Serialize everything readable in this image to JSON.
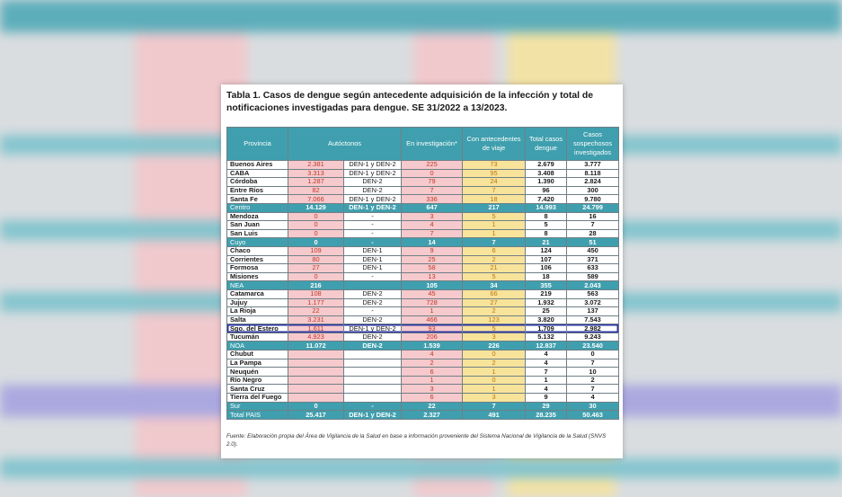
{
  "title": "Tabla 1. Casos de dengue según antecedente adquisición de la infección y total de notificaciones investigadas para dengue. SE 31/2022 a 13/2023.",
  "headers": {
    "provincia": "Provincia",
    "autoctonos": "Autóctonos",
    "investigacion": "En investigación*",
    "viaje": "Con antecedentes de viaje",
    "total": "Total casos dengue",
    "sospechosos": "Casos sospechosos investigados"
  },
  "rows": [
    {
      "type": "prov",
      "provincia": "Buenos Aires",
      "aut": "2.381",
      "den": "DEN-1  y DEN-2",
      "inv": "225",
      "via": "73",
      "tot": "2.679",
      "sos": "3.777"
    },
    {
      "type": "prov",
      "provincia": "CABA",
      "aut": "3.313",
      "den": "DEN-1  y DEN-2",
      "inv": "0",
      "via": "95",
      "tot": "3.408",
      "sos": "8.118"
    },
    {
      "type": "prov",
      "provincia": "Córdoba",
      "aut": "1.287",
      "den": "DEN-2",
      "inv": "79",
      "via": "24",
      "tot": "1.390",
      "sos": "2.824"
    },
    {
      "type": "prov",
      "provincia": "Entre Ríos",
      "aut": "82",
      "den": "DEN-2",
      "inv": "7",
      "via": "7",
      "tot": "96",
      "sos": "300"
    },
    {
      "type": "prov",
      "provincia": "Santa Fe",
      "aut": "7.066",
      "den": "DEN-1  y DEN-2",
      "inv": "336",
      "via": "18",
      "tot": "7.420",
      "sos": "9.780"
    },
    {
      "type": "region",
      "provincia": "Centro",
      "aut": "14.129",
      "den": "DEN-1  y DEN-2",
      "inv": "647",
      "via": "217",
      "tot": "14.993",
      "sos": "24.799"
    },
    {
      "type": "prov",
      "provincia": "Mendoza",
      "aut": "0",
      "den": "-",
      "inv": "3",
      "via": "5",
      "tot": "8",
      "sos": "16"
    },
    {
      "type": "prov",
      "provincia": "San Juan",
      "aut": "0",
      "den": "-",
      "inv": "4",
      "via": "1",
      "tot": "5",
      "sos": "7"
    },
    {
      "type": "prov",
      "provincia": "San Luis",
      "aut": "0",
      "den": "-",
      "inv": "7",
      "via": "1",
      "tot": "8",
      "sos": "28"
    },
    {
      "type": "region",
      "provincia": "Cuyo",
      "aut": "0",
      "den": "-",
      "inv": "14",
      "via": "7",
      "tot": "21",
      "sos": "51"
    },
    {
      "type": "prov",
      "provincia": "Chaco",
      "aut": "109",
      "den": "DEN-1",
      "inv": "9",
      "via": "6",
      "tot": "124",
      "sos": "450"
    },
    {
      "type": "prov",
      "provincia": "Corrientes",
      "aut": "80",
      "den": "DEN-1",
      "inv": "25",
      "via": "2",
      "tot": "107",
      "sos": "371"
    },
    {
      "type": "prov",
      "provincia": "Formosa",
      "aut": "27",
      "den": "DEN-1",
      "inv": "58",
      "via": "21",
      "tot": "106",
      "sos": "633"
    },
    {
      "type": "prov",
      "provincia": "Misiones",
      "aut": "0",
      "den": "-",
      "inv": "13",
      "via": "5",
      "tot": "18",
      "sos": "589"
    },
    {
      "type": "region",
      "provincia": "NEA",
      "aut": "216",
      "den": "",
      "inv": "105",
      "via": "34",
      "tot": "355",
      "sos": "2.043"
    },
    {
      "type": "prov",
      "provincia": "Catamarca",
      "aut": "108",
      "den": "DEN-2",
      "inv": "45",
      "via": "66",
      "tot": "219",
      "sos": "563"
    },
    {
      "type": "prov",
      "provincia": "Jujuy",
      "aut": "1.177",
      "den": "DEN-2",
      "inv": "728",
      "via": "27",
      "tot": "1.932",
      "sos": "3.072"
    },
    {
      "type": "prov",
      "provincia": "La Rioja",
      "aut": "22",
      "den": "-",
      "inv": "1",
      "via": "2",
      "tot": "25",
      "sos": "137"
    },
    {
      "type": "prov",
      "provincia": "Salta",
      "aut": "3.231",
      "den": "DEN-2",
      "inv": "466",
      "via": "123",
      "tot": "3.820",
      "sos": "7.543"
    },
    {
      "type": "hl",
      "provincia": "Sgo. del Estero",
      "aut": "1.611",
      "den": "DEN-1  y DEN-2",
      "inv": "93",
      "via": "5",
      "tot": "1.709",
      "sos": "2.982"
    },
    {
      "type": "prov",
      "provincia": "Tucumán",
      "aut": "4.923",
      "den": "DEN-2",
      "inv": "206",
      "via": "3",
      "tot": "5.132",
      "sos": "9.243"
    },
    {
      "type": "region",
      "provincia": "NOA",
      "aut": "11.072",
      "den": "DEN-2",
      "inv": "1.539",
      "via": "226",
      "tot": "12.837",
      "sos": "23.540"
    },
    {
      "type": "prov",
      "provincia": "Chubut",
      "aut": "",
      "den": "",
      "inv": "4",
      "via": "0",
      "tot": "4",
      "sos": "0"
    },
    {
      "type": "prov",
      "provincia": "La Pampa",
      "aut": "",
      "den": "",
      "inv": "2",
      "via": "2",
      "tot": "4",
      "sos": "7"
    },
    {
      "type": "prov",
      "provincia": "Neuquén",
      "aut": "",
      "den": "",
      "inv": "6",
      "via": "1",
      "tot": "7",
      "sos": "10"
    },
    {
      "type": "prov",
      "provincia": "Río Negro",
      "aut": "",
      "den": "",
      "inv": "1",
      "via": "0",
      "tot": "1",
      "sos": "2"
    },
    {
      "type": "prov",
      "provincia": "Santa Cruz",
      "aut": "",
      "den": "",
      "inv": "3",
      "via": "1",
      "tot": "4",
      "sos": "7"
    },
    {
      "type": "prov",
      "provincia": "Tierra del Fuego",
      "aut": "",
      "den": "",
      "inv": "6",
      "via": "3",
      "tot": "9",
      "sos": "4"
    },
    {
      "type": "region",
      "provincia": "Sur",
      "aut": "0",
      "den": "-",
      "inv": "22",
      "via": "7",
      "tot": "29",
      "sos": "30"
    },
    {
      "type": "region",
      "provincia": "Total PAIS",
      "aut": "25.417",
      "den": "DEN-1  y DEN-2",
      "inv": "2.327",
      "via": "491",
      "tot": "28.235",
      "sos": "50.463"
    }
  ],
  "footer": "Fuente: Elaboración propia del Área de Vigilancia de la Salud en base a información proveniente del Sistema Nacional de Vigilancia de la Salud (SNVS 2.0)."
}
